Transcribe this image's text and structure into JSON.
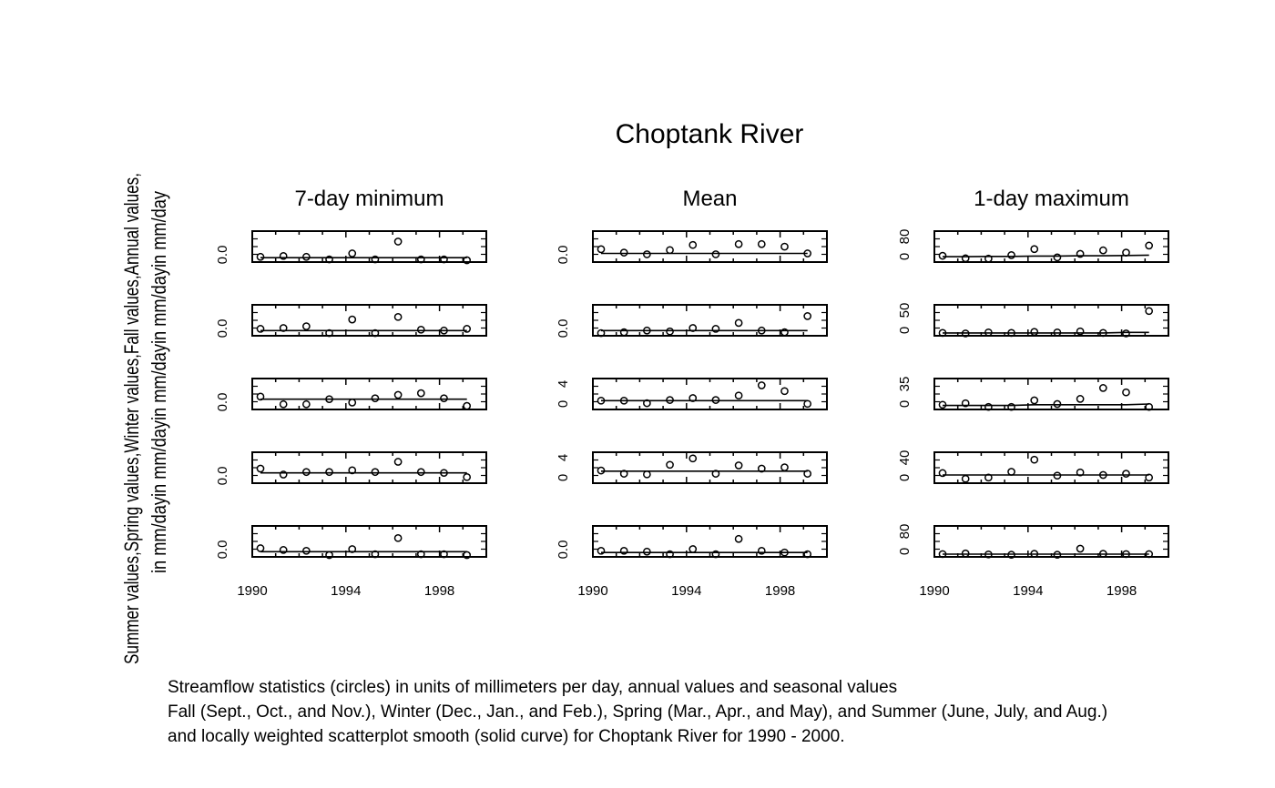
{
  "title": "Choptank River",
  "y_axis_label_lines": [
    "Summer values,Spring values,Winter values,Fall values,Annual values,",
    "in mm/dayin mm/dayin mm/dayin mm/dayin mm/day"
  ],
  "caption": [
    "Streamflow statistics (circles) in units of millimeters per day, annual values and seasonal values",
    "Fall (Sept., Oct., and Nov.), Winter (Dec., Jan., and Feb.), Spring (Mar., Apr., and May), and Summer (June, July, and Aug.)",
    "and locally weighted scatterplot smooth (solid curve) for Choptank River for 1990 - 2000."
  ],
  "chart_data": [
    {
      "type": "scatter",
      "title": "7-day minimum",
      "x_ticks": [
        1990,
        1994,
        1998
      ],
      "xlim": [
        1990,
        2000
      ],
      "panels": [
        {
          "ylim": [
            0,
            0.3
          ],
          "y_tick_labels": [
            "0.0"
          ],
          "values": [
            0.04,
            0.05,
            0.04,
            0.01,
            0.08,
            0.01,
            0.22,
            0.01,
            0.01,
            0.0
          ],
          "smooth": [
            0.03,
            0.03,
            0.03,
            0.03,
            0.03,
            0.03,
            0.03,
            0.03,
            0.03,
            0.03
          ]
        },
        {
          "ylim": [
            0,
            0.3
          ],
          "y_tick_labels": [
            "0.0"
          ],
          "values": [
            0.06,
            0.07,
            0.09,
            0.01,
            0.17,
            0.01,
            0.2,
            0.05,
            0.04,
            0.06
          ],
          "smooth": [
            0.04,
            0.04,
            0.04,
            0.04,
            0.04,
            0.04,
            0.04,
            0.04,
            0.04,
            0.04
          ]
        },
        {
          "ylim": [
            0,
            0.3
          ],
          "y_tick_labels": [
            "0.0"
          ],
          "values": [
            0.13,
            0.04,
            0.04,
            0.1,
            0.06,
            0.11,
            0.15,
            0.17,
            0.11,
            0.02
          ],
          "smooth": [
            0.1,
            0.1,
            0.1,
            0.1,
            0.1,
            0.1,
            0.1,
            0.1,
            0.1,
            0.1
          ]
        },
        {
          "ylim": [
            0,
            0.3
          ],
          "y_tick_labels": [
            "0.0"
          ],
          "values": [
            0.15,
            0.08,
            0.11,
            0.11,
            0.13,
            0.11,
            0.23,
            0.11,
            0.1,
            0.05
          ],
          "smooth": [
            0.1,
            0.1,
            0.1,
            0.1,
            0.1,
            0.1,
            0.1,
            0.1,
            0.1,
            0.1
          ]
        },
        {
          "ylim": [
            0,
            0.3
          ],
          "y_tick_labels": [
            "0.0"
          ],
          "values": [
            0.08,
            0.06,
            0.05,
            0.0,
            0.07,
            0.01,
            0.2,
            0.01,
            0.01,
            0.0
          ],
          "smooth": [
            0.04,
            0.04,
            0.04,
            0.04,
            0.04,
            0.04,
            0.04,
            0.04,
            0.04,
            0.04
          ]
        }
      ]
    },
    {
      "type": "scatter",
      "title": "Mean",
      "x_ticks": [
        1990,
        1994,
        1998
      ],
      "xlim": [
        1990,
        2000
      ],
      "panels": [
        {
          "ylim": [
            0,
            3
          ],
          "y_tick_labels": [
            "0.0"
          ],
          "values": [
            1.3,
            0.9,
            0.7,
            1.2,
            1.8,
            0.7,
            1.9,
            1.9,
            1.6,
            0.8
          ],
          "smooth": [
            0.8,
            0.8,
            0.8,
            0.8,
            0.8,
            0.8,
            0.8,
            0.8,
            0.8,
            0.8
          ]
        },
        {
          "ylim": [
            0,
            3
          ],
          "y_tick_labels": [
            "0.0"
          ],
          "values": [
            0.1,
            0.2,
            0.4,
            0.3,
            0.7,
            0.6,
            1.3,
            0.4,
            0.2,
            2.1
          ],
          "smooth": [
            0.4,
            0.4,
            0.4,
            0.4,
            0.4,
            0.4,
            0.4,
            0.4,
            0.4,
            0.4
          ]
        },
        {
          "ylim": [
            0,
            4
          ],
          "y_tick_labels": [
            "0",
            "4"
          ],
          "values": [
            1.1,
            1.1,
            0.7,
            1.2,
            1.5,
            1.2,
            1.9,
            3.5,
            2.6,
            0.6
          ],
          "smooth": [
            1.1,
            1.1,
            1.1,
            1.1,
            1.1,
            1.1,
            1.1,
            1.1,
            1.1,
            1.1
          ]
        },
        {
          "ylim": [
            0,
            4
          ],
          "y_tick_labels": [
            "0",
            "4"
          ],
          "values": [
            1.7,
            1.2,
            1.1,
            2.6,
            3.6,
            1.2,
            2.5,
            2.0,
            2.2,
            1.2
          ],
          "smooth": [
            1.6,
            1.6,
            1.6,
            1.6,
            1.6,
            1.6,
            1.6,
            1.6,
            1.6,
            1.6
          ]
        },
        {
          "ylim": [
            0,
            3
          ],
          "y_tick_labels": [
            "0.0"
          ],
          "values": [
            0.5,
            0.5,
            0.4,
            0.1,
            0.7,
            0.1,
            1.9,
            0.5,
            0.3,
            0.1
          ],
          "smooth": [
            0.3,
            0.3,
            0.3,
            0.3,
            0.3,
            0.3,
            0.3,
            0.3,
            0.3,
            0.3
          ]
        }
      ]
    },
    {
      "type": "scatter",
      "title": "1-day maximum",
      "x_ticks": [
        1990,
        1994,
        1998
      ],
      "xlim": [
        1990,
        2000
      ],
      "panels": [
        {
          "ylim": [
            0,
            80
          ],
          "y_tick_labels": [
            "0",
            "80"
          ],
          "values": [
            14,
            6,
            5,
            16,
            35,
            9,
            20,
            31,
            24,
            46
          ],
          "smooth": [
            11,
            11,
            12,
            12,
            13,
            13,
            14,
            14,
            15,
            16
          ]
        },
        {
          "ylim": [
            0,
            50
          ],
          "y_tick_labels": [
            "0",
            "50"
          ],
          "values": [
            2,
            1,
            3,
            2,
            4,
            3,
            5,
            2,
            1,
            45
          ],
          "smooth": [
            2,
            2,
            2,
            2,
            2,
            2,
            2,
            2,
            3,
            3
          ]
        },
        {
          "ylim": [
            0,
            35
          ],
          "y_tick_labels": [
            "0",
            "35"
          ],
          "values": [
            4,
            6,
            1,
            1,
            10,
            5,
            12,
            27,
            21,
            1
          ],
          "smooth": [
            3,
            3,
            3,
            3,
            4,
            4,
            4,
            4,
            4,
            5
          ]
        },
        {
          "ylim": [
            0,
            40
          ],
          "y_tick_labels": [
            "0",
            "40"
          ],
          "values": [
            13,
            4,
            6,
            15,
            34,
            9,
            14,
            10,
            12,
            6
          ],
          "smooth": [
            10,
            10,
            10,
            10,
            10,
            10,
            10,
            10,
            10,
            10
          ]
        },
        {
          "ylim": [
            0,
            80
          ],
          "y_tick_labels": [
            "0",
            "80"
          ],
          "values": [
            3,
            5,
            2,
            1,
            4,
            1,
            20,
            4,
            3,
            3
          ],
          "smooth": [
            3,
            3,
            3,
            3,
            3,
            3,
            3,
            3,
            3,
            3
          ]
        }
      ]
    }
  ]
}
